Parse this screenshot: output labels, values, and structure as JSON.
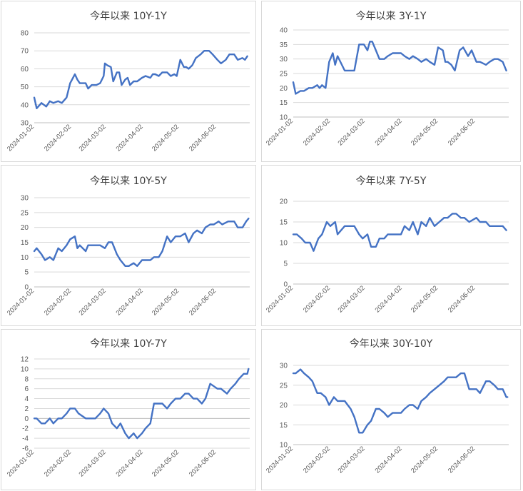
{
  "colors": {
    "line": "#4472C4",
    "grid": "#d9d9d9",
    "axis_text": "#595959",
    "title_text": "#404040"
  },
  "chart_data": [
    {
      "type": "line",
      "title": "今年以来 10Y-1Y",
      "xlabel": "",
      "ylabel": "",
      "ylim": [
        30,
        80
      ],
      "yticks": [
        "30",
        "40",
        "50",
        "60",
        "70",
        "80"
      ],
      "xlim": [
        "2024-01-02",
        "2024-06-30"
      ],
      "xticks": [
        "2024-01-02",
        "2024-02-02",
        "2024-03-02",
        "2024-04-02",
        "2024-05-02",
        "2024-06-02"
      ],
      "grid": true,
      "legend": "none",
      "x": [
        "2024-01-02",
        "2024-01-04",
        "2024-01-08",
        "2024-01-12",
        "2024-01-15",
        "2024-01-18",
        "2024-01-22",
        "2024-01-25",
        "2024-01-29",
        "2024-02-01",
        "2024-02-05",
        "2024-02-07",
        "2024-02-09",
        "2024-02-14",
        "2024-02-16",
        "2024-02-19",
        "2024-02-20",
        "2024-02-23",
        "2024-02-26",
        "2024-02-29",
        "2024-03-01",
        "2024-03-03",
        "2024-03-06",
        "2024-03-08",
        "2024-03-11",
        "2024-03-13",
        "2024-03-15",
        "2024-03-18",
        "2024-03-20",
        "2024-03-22",
        "2024-03-25",
        "2024-03-28",
        "2024-04-01",
        "2024-04-04",
        "2024-04-08",
        "2024-04-10",
        "2024-04-12",
        "2024-04-15",
        "2024-04-18",
        "2024-04-22",
        "2024-04-25",
        "2024-04-28",
        "2024-04-30",
        "2024-05-03",
        "2024-05-06",
        "2024-05-08",
        "2024-05-10",
        "2024-05-13",
        "2024-05-16",
        "2024-05-20",
        "2024-05-23",
        "2024-05-27",
        "2024-05-30",
        "2024-06-03",
        "2024-06-06",
        "2024-06-10",
        "2024-06-13",
        "2024-06-17",
        "2024-06-20",
        "2024-06-24",
        "2024-06-26",
        "2024-06-28"
      ],
      "y": [
        44,
        38,
        41,
        39,
        42,
        41,
        42,
        41,
        44,
        52,
        57,
        54,
        52,
        52,
        49,
        51,
        51,
        51,
        52,
        56,
        63,
        62,
        61,
        53,
        58,
        58,
        51,
        54,
        55,
        51,
        53,
        53,
        55,
        56,
        55,
        57,
        57,
        56,
        58,
        58,
        56,
        57,
        56,
        65,
        61,
        61,
        60,
        62,
        66,
        68,
        70,
        70,
        68,
        65,
        63,
        65,
        68,
        68,
        65,
        66,
        65,
        67
      ]
    },
    {
      "type": "line",
      "title": "今年以来 3Y-1Y",
      "xlabel": "",
      "ylabel": "",
      "ylim": [
        10,
        40
      ],
      "yticks": [
        "10",
        "15",
        "20",
        "25",
        "30",
        "35",
        "40"
      ],
      "xlim": [
        "2024-01-02",
        "2024-06-30"
      ],
      "xticks": [
        "2024-01-02",
        "2024-02-02",
        "2024-03-02",
        "2024-04-02",
        "2024-05-02",
        "2024-06-02"
      ],
      "grid": true,
      "legend": "none",
      "x": [
        "2024-01-02",
        "2024-01-04",
        "2024-01-08",
        "2024-01-11",
        "2024-01-15",
        "2024-01-18",
        "2024-01-22",
        "2024-01-24",
        "2024-01-26",
        "2024-01-29",
        "2024-02-01",
        "2024-02-04",
        "2024-02-06",
        "2024-02-08",
        "2024-02-14",
        "2024-02-20",
        "2024-02-22",
        "2024-02-26",
        "2024-02-28",
        "2024-03-01",
        "2024-03-04",
        "2024-03-06",
        "2024-03-08",
        "2024-03-11",
        "2024-03-14",
        "2024-03-18",
        "2024-03-21",
        "2024-03-25",
        "2024-03-28",
        "2024-04-01",
        "2024-04-04",
        "2024-04-08",
        "2024-04-11",
        "2024-04-15",
        "2024-04-18",
        "2024-04-22",
        "2024-04-25",
        "2024-04-29",
        "2024-05-02",
        "2024-05-06",
        "2024-05-08",
        "2024-05-10",
        "2024-05-13",
        "2024-05-16",
        "2024-05-20",
        "2024-05-23",
        "2024-05-27",
        "2024-05-30",
        "2024-06-03",
        "2024-06-06",
        "2024-06-11",
        "2024-06-14",
        "2024-06-18",
        "2024-06-21",
        "2024-06-25",
        "2024-06-28"
      ],
      "y": [
        22,
        18,
        19,
        19,
        20,
        20,
        21,
        20,
        21,
        20,
        29,
        32,
        28,
        31,
        26,
        26,
        26,
        35,
        35,
        35,
        33,
        36,
        36,
        33,
        30,
        30,
        31,
        32,
        32,
        32,
        31,
        30,
        31,
        30,
        29,
        30,
        29,
        28,
        34,
        33,
        29,
        29,
        28,
        26,
        33,
        34,
        31,
        33,
        29,
        29,
        28,
        29,
        30,
        30,
        29,
        26
      ]
    },
    {
      "type": "line",
      "title": "今年以来 10Y-5Y",
      "xlabel": "",
      "ylabel": "",
      "ylim": [
        0,
        30
      ],
      "yticks": [
        "0",
        "5",
        "10",
        "15",
        "20",
        "25",
        "30"
      ],
      "xlim": [
        "2024-01-02",
        "2024-06-30"
      ],
      "xticks": [
        "2024-01-02",
        "2024-02-02",
        "2024-03-02",
        "2024-04-02",
        "2024-05-02",
        "2024-06-02"
      ],
      "grid": true,
      "legend": "none",
      "x": [
        "2024-01-02",
        "2024-01-04",
        "2024-01-08",
        "2024-01-11",
        "2024-01-15",
        "2024-01-18",
        "2024-01-22",
        "2024-01-25",
        "2024-01-29",
        "2024-02-01",
        "2024-02-05",
        "2024-02-07",
        "2024-02-09",
        "2024-02-14",
        "2024-02-16",
        "2024-02-19",
        "2024-02-21",
        "2024-02-26",
        "2024-03-01",
        "2024-03-04",
        "2024-03-07",
        "2024-03-11",
        "2024-03-14",
        "2024-03-18",
        "2024-03-21",
        "2024-03-25",
        "2024-03-28",
        "2024-04-01",
        "2024-04-04",
        "2024-04-08",
        "2024-04-11",
        "2024-04-15",
        "2024-04-18",
        "2024-04-22",
        "2024-04-25",
        "2024-04-29",
        "2024-05-03",
        "2024-05-07",
        "2024-05-10",
        "2024-05-14",
        "2024-05-17",
        "2024-05-21",
        "2024-05-24",
        "2024-05-28",
        "2024-05-31",
        "2024-06-04",
        "2024-06-07",
        "2024-06-12",
        "2024-06-17",
        "2024-06-20",
        "2024-06-24",
        "2024-06-27",
        "2024-06-29"
      ],
      "y": [
        12,
        13,
        11,
        9,
        10,
        9,
        13,
        12,
        14,
        16,
        17,
        13,
        14,
        12,
        14,
        14,
        14,
        14,
        13,
        15,
        15,
        11,
        9,
        7,
        7,
        8,
        7,
        9,
        9,
        9,
        10,
        10,
        12,
        17,
        15,
        17,
        17,
        18,
        15,
        18,
        19,
        18,
        20,
        21,
        21,
        22,
        21,
        22,
        22,
        20,
        20,
        22,
        23
      ]
    },
    {
      "type": "line",
      "title": "今年以来 7Y-5Y",
      "xlabel": "",
      "ylabel": "",
      "ylim": [
        0,
        20
      ],
      "yticks": [
        "0",
        "5",
        "10",
        "15",
        "20"
      ],
      "xlim": [
        "2024-01-02",
        "2024-06-30"
      ],
      "xticks": [
        "2024-01-02",
        "2024-02-02",
        "2024-03-02",
        "2024-04-02",
        "2024-05-02",
        "2024-06-02"
      ],
      "grid": true,
      "legend": "none",
      "x": [
        "2024-01-02",
        "2024-01-05",
        "2024-01-09",
        "2024-01-12",
        "2024-01-16",
        "2024-01-19",
        "2024-01-23",
        "2024-01-26",
        "2024-01-30",
        "2024-02-02",
        "2024-02-06",
        "2024-02-08",
        "2024-02-14",
        "2024-02-19",
        "2024-02-22",
        "2024-02-26",
        "2024-02-29",
        "2024-03-04",
        "2024-03-07",
        "2024-03-11",
        "2024-03-14",
        "2024-03-18",
        "2024-03-21",
        "2024-03-25",
        "2024-03-28",
        "2024-04-01",
        "2024-04-04",
        "2024-04-08",
        "2024-04-11",
        "2024-04-15",
        "2024-04-18",
        "2024-04-22",
        "2024-04-25",
        "2024-04-29",
        "2024-05-03",
        "2024-05-07",
        "2024-05-10",
        "2024-05-14",
        "2024-05-17",
        "2024-05-21",
        "2024-05-24",
        "2024-05-28",
        "2024-06-03",
        "2024-06-06",
        "2024-06-11",
        "2024-06-14",
        "2024-06-18",
        "2024-06-21",
        "2024-06-25",
        "2024-06-28"
      ],
      "y": [
        12,
        12,
        11,
        10,
        10,
        8,
        11,
        12,
        15,
        14,
        15,
        12,
        14,
        14,
        14,
        12,
        11,
        12,
        9,
        9,
        11,
        11,
        12,
        12,
        12,
        12,
        14,
        13,
        15,
        12,
        15,
        14,
        16,
        14,
        15,
        16,
        16,
        17,
        17,
        16,
        16,
        15,
        16,
        15,
        15,
        14,
        14,
        14,
        14,
        13
      ]
    },
    {
      "type": "line",
      "title": "今年以来 10Y-7Y",
      "xlabel": "",
      "ylabel": "",
      "ylim": [
        -6,
        12
      ],
      "yticks": [
        "-6",
        "-4",
        "-2",
        "0",
        "2",
        "4",
        "6",
        "8",
        "10",
        "12"
      ],
      "xlim": [
        "2024-01-02",
        "2024-06-30"
      ],
      "xticks": [
        "2024-01-02",
        "2024-02-02",
        "2024-03-02",
        "2024-04-02",
        "2024-05-02",
        "2024-06-02"
      ],
      "grid": true,
      "legend": "none",
      "x": [
        "2024-01-02",
        "2024-01-04",
        "2024-01-08",
        "2024-01-11",
        "2024-01-15",
        "2024-01-18",
        "2024-01-22",
        "2024-01-25",
        "2024-01-29",
        "2024-02-01",
        "2024-02-05",
        "2024-02-08",
        "2024-02-14",
        "2024-02-19",
        "2024-02-22",
        "2024-02-26",
        "2024-02-29",
        "2024-03-04",
        "2024-03-07",
        "2024-03-11",
        "2024-03-14",
        "2024-03-18",
        "2024-03-21",
        "2024-03-25",
        "2024-03-28",
        "2024-04-01",
        "2024-04-04",
        "2024-04-08",
        "2024-04-11",
        "2024-04-15",
        "2024-04-18",
        "2024-04-22",
        "2024-04-25",
        "2024-04-29",
        "2024-05-03",
        "2024-05-07",
        "2024-05-10",
        "2024-05-14",
        "2024-05-17",
        "2024-05-21",
        "2024-05-24",
        "2024-05-28",
        "2024-06-03",
        "2024-06-06",
        "2024-06-11",
        "2024-06-14",
        "2024-06-18",
        "2024-06-21",
        "2024-06-25",
        "2024-06-28",
        "2024-06-29"
      ],
      "y": [
        0,
        0,
        -1,
        -1,
        0,
        -1,
        0,
        0,
        1,
        2,
        2,
        1,
        0,
        0,
        0,
        1,
        2,
        1,
        -1,
        -2,
        -1,
        -3,
        -4,
        -3,
        -4,
        -3,
        -2,
        -1,
        3,
        3,
        3,
        2,
        3,
        4,
        4,
        5,
        5,
        4,
        4,
        3,
        4,
        7,
        6,
        6,
        5,
        6,
        7,
        8,
        9,
        9,
        10
      ]
    },
    {
      "type": "line",
      "title": "今年以来 30Y-10Y",
      "xlabel": "",
      "ylabel": "",
      "ylim": [
        10,
        30
      ],
      "yticks": [
        "10",
        "15",
        "20",
        "25",
        "30"
      ],
      "xlim": [
        "2024-01-02",
        "2024-06-30"
      ],
      "xticks": [
        "2024-01-02",
        "2024-02-02",
        "2024-03-02",
        "2024-04-02",
        "2024-05-02",
        "2024-06-02"
      ],
      "grid": true,
      "legend": "none",
      "x": [
        "2024-01-02",
        "2024-01-04",
        "2024-01-08",
        "2024-01-11",
        "2024-01-15",
        "2024-01-18",
        "2024-01-22",
        "2024-01-25",
        "2024-01-29",
        "2024-02-01",
        "2024-02-05",
        "2024-02-08",
        "2024-02-14",
        "2024-02-19",
        "2024-02-22",
        "2024-02-26",
        "2024-02-29",
        "2024-03-04",
        "2024-03-07",
        "2024-03-11",
        "2024-03-14",
        "2024-03-18",
        "2024-03-21",
        "2024-03-25",
        "2024-03-28",
        "2024-04-01",
        "2024-04-04",
        "2024-04-08",
        "2024-04-11",
        "2024-04-15",
        "2024-04-18",
        "2024-04-22",
        "2024-04-25",
        "2024-04-29",
        "2024-05-03",
        "2024-05-07",
        "2024-05-10",
        "2024-05-14",
        "2024-05-17",
        "2024-05-21",
        "2024-05-24",
        "2024-05-28",
        "2024-06-03",
        "2024-06-06",
        "2024-06-11",
        "2024-06-14",
        "2024-06-18",
        "2024-06-21",
        "2024-06-25",
        "2024-06-28",
        "2024-06-29"
      ],
      "y": [
        28,
        28,
        29,
        28,
        27,
        26,
        23,
        23,
        22,
        20,
        22,
        21,
        21,
        19,
        17,
        13,
        13,
        15,
        16,
        19,
        19,
        18,
        17,
        18,
        18,
        18,
        19,
        20,
        20,
        19,
        21,
        22,
        23,
        24,
        25,
        26,
        27,
        27,
        27,
        28,
        28,
        24,
        24,
        23,
        26,
        26,
        25,
        24,
        24,
        22,
        22
      ]
    }
  ]
}
